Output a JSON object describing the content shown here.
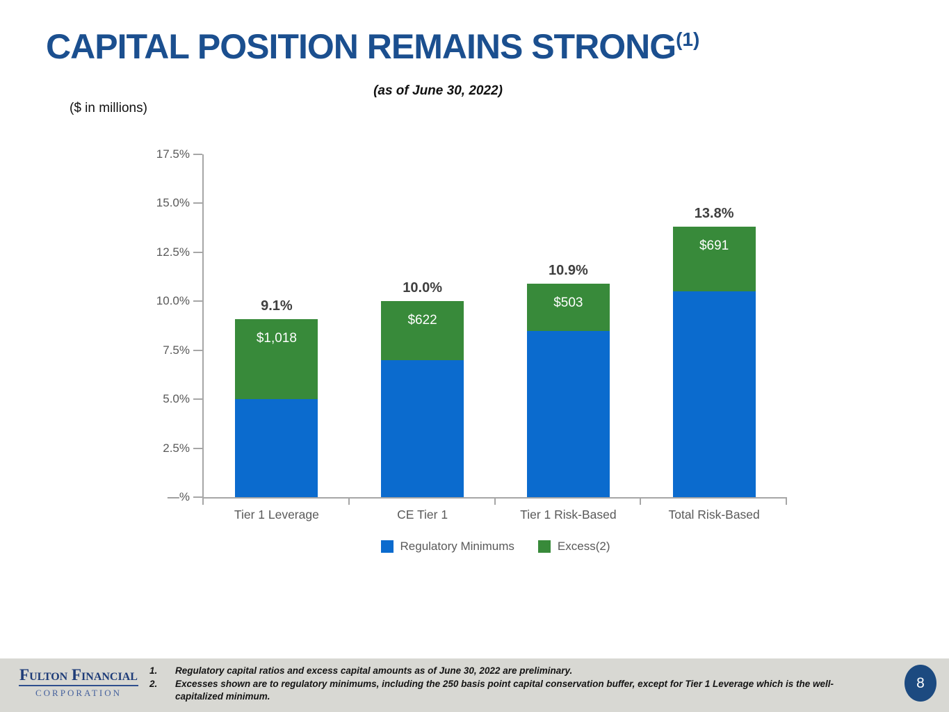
{
  "title": {
    "text": "CAPITAL POSITION REMAINS STRONG",
    "superscript": "(1)"
  },
  "subtitle": "(as of June 30, 2022)",
  "units_note": "($ in millions)",
  "chart_data": {
    "type": "bar",
    "stacked": true,
    "title": "",
    "xlabel": "",
    "ylabel": "",
    "grid": false,
    "legend_position": "bottom",
    "ylim": [
      0,
      17.5
    ],
    "ytick_values": [
      17.5,
      15.0,
      12.5,
      10.0,
      7.5,
      5.0,
      2.5,
      0
    ],
    "ytick_labels": [
      "17.5%",
      "15.0%",
      "12.5%",
      "10.0%",
      "7.5%",
      "5.0%",
      "2.5%",
      "—%"
    ],
    "categories": [
      "Tier 1 Leverage",
      "CE Tier 1",
      "Tier 1 Risk-Based",
      "Total Risk-Based"
    ],
    "series": [
      {
        "name": "Regulatory Minimums",
        "color": "#0b6bce",
        "values": [
          5.0,
          7.0,
          8.5,
          10.5
        ]
      },
      {
        "name": "Excess(2)",
        "color": "#388a3a",
        "values": [
          4.1,
          3.0,
          2.4,
          3.3
        ]
      }
    ],
    "total_ratio_labels": [
      "9.1%",
      "10.0%",
      "10.9%",
      "13.8%"
    ],
    "excess_dollar_labels": [
      "$1,018",
      "$622",
      "$503",
      "$691"
    ]
  },
  "legend": {
    "items": [
      {
        "label": "Regulatory Minimums",
        "color": "#0b6bce"
      },
      {
        "label": "Excess(2)",
        "color": "#388a3a"
      }
    ]
  },
  "footer": {
    "logo": {
      "line1": "Fulton Financial",
      "line2": "CORPORATION"
    },
    "notes": [
      {
        "number": "1.",
        "text": "Regulatory capital ratios and excess capital amounts as of June 30, 2022 are preliminary."
      },
      {
        "number": "2.",
        "text": "Excesses shown are to regulatory minimums, including the 250 basis point capital conservation buffer, except for Tier 1 Leverage which is the well-capitalized minimum."
      }
    ],
    "page_number": "8"
  },
  "colors": {
    "title_blue": "#1b4f8f",
    "bar_blue": "#0b6bce",
    "bar_green": "#388a3a",
    "axis_gray": "#a6a6a6",
    "tick_label_gray": "#595959",
    "footer_bg": "#d8d8d3",
    "page_badge_blue": "#1c4a80"
  }
}
